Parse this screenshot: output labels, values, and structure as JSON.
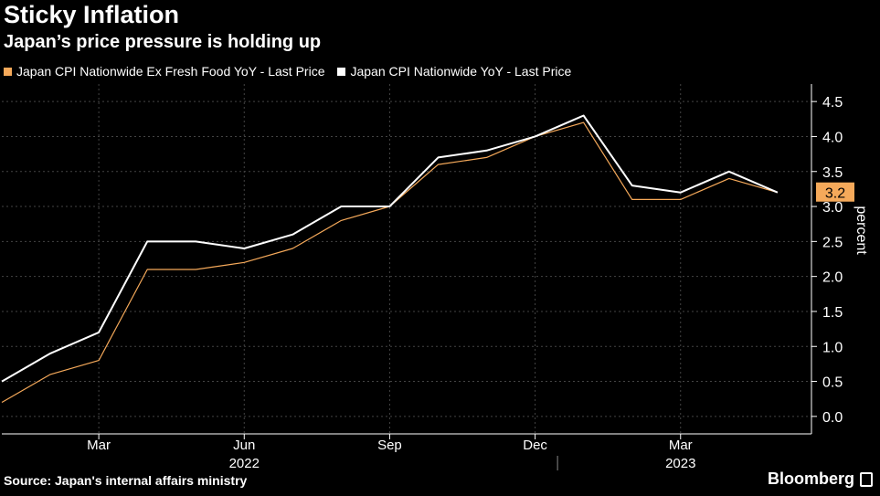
{
  "title": "Sticky Inflation",
  "subtitle": "Japan’s price pressure is holding up",
  "source": "Source: Japan's internal affairs ministry",
  "brand": "Bloomberg",
  "colors": {
    "background": "#000000",
    "core": "#f5a95a",
    "headline": "#ffffff",
    "grid": "#444444"
  },
  "chart_data": {
    "type": "line",
    "x": [
      "2022-01",
      "2022-02",
      "2022-03",
      "2022-04",
      "2022-05",
      "2022-06",
      "2022-07",
      "2022-08",
      "2022-09",
      "2022-10",
      "2022-11",
      "2022-12",
      "2023-01",
      "2023-02",
      "2023-03",
      "2023-04",
      "2023-05"
    ],
    "series": [
      {
        "name": "Japan CPI Nationwide Ex Fresh Food YoY - Last Price",
        "color": "#f5a95a",
        "values": [
          0.2,
          0.6,
          0.8,
          2.1,
          2.1,
          2.2,
          2.4,
          2.8,
          3.0,
          3.6,
          3.7,
          4.0,
          4.2,
          3.1,
          3.1,
          3.4,
          3.2
        ]
      },
      {
        "name": "Japan CPI Nationwide YoY - Last Price",
        "color": "#ffffff",
        "values": [
          0.5,
          0.9,
          1.2,
          2.5,
          2.5,
          2.4,
          2.6,
          3.0,
          3.0,
          3.7,
          3.8,
          4.0,
          4.3,
          3.3,
          3.2,
          3.5,
          3.2
        ]
      }
    ],
    "ylim": [
      -0.25,
      4.75
    ],
    "yticks": [
      "0.0",
      "0.5",
      "1.0",
      "1.5",
      "2.0",
      "2.5",
      "3.0",
      "3.5",
      "4.0",
      "4.5"
    ],
    "ylabel": "percent",
    "xticks": [
      {
        "label": "Mar",
        "index": 2
      },
      {
        "label": "Jun",
        "index": 5
      },
      {
        "label": "Sep",
        "index": 8
      },
      {
        "label": "Dec",
        "index": 11
      },
      {
        "label": "Mar",
        "index": 14
      }
    ],
    "year_labels": [
      {
        "label": "2022",
        "index": 5
      },
      {
        "label": "2023",
        "index": 14
      }
    ],
    "last_value_label": "3.2",
    "grid": true,
    "legend_position": "top-left"
  }
}
